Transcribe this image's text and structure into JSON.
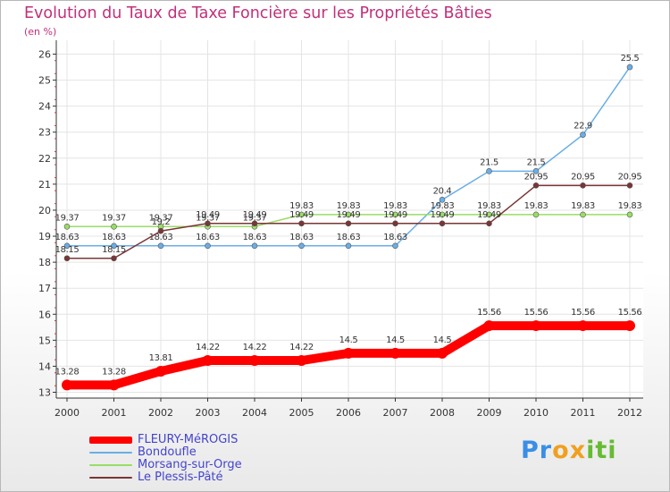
{
  "chart_data": {
    "type": "line",
    "title": "Evolution du Taux de Taxe Foncière sur les Propriétés Bâties",
    "ylabel": "(en %)",
    "xlabel": "",
    "x": [
      "2000",
      "2001",
      "2002",
      "2003",
      "2004",
      "2005",
      "2006",
      "2007",
      "2008",
      "2009",
      "2010",
      "2011",
      "2012"
    ],
    "ylim": [
      13,
      26
    ],
    "yticks": [
      "13",
      "14",
      "15",
      "16",
      "17",
      "18",
      "19",
      "20",
      "21",
      "22",
      "23",
      "24",
      "25",
      "26"
    ],
    "grid": true,
    "legend_position": "bottom-left",
    "series": [
      {
        "name": "FLEURY-MéROGIS",
        "color": "#ff0000",
        "values": [
          13.28,
          13.28,
          13.81,
          14.22,
          14.22,
          14.22,
          14.5,
          14.5,
          14.5,
          15.56,
          15.56,
          15.56,
          15.56
        ],
        "labels": [
          "13.28",
          "13.28",
          "13.81",
          "14.22",
          "14.22",
          "14.22",
          "14.5",
          "14.5",
          "14.5",
          "15.56",
          "15.56",
          "15.56",
          "15.56"
        ]
      },
      {
        "name": "Bondoufle",
        "color": "#6aaee6",
        "values": [
          18.63,
          18.63,
          18.63,
          18.63,
          18.63,
          18.63,
          18.63,
          18.63,
          20.4,
          21.5,
          21.5,
          22.9,
          25.5
        ],
        "labels": [
          "18.63",
          "18.63",
          "18.63",
          "18.63",
          "18.63",
          "18.63",
          "18.63",
          "18.63",
          "20.4",
          "21.5",
          "21.5",
          "22.9",
          "25.5"
        ]
      },
      {
        "name": "Morsang-sur-Orge",
        "color": "#99dd66",
        "values": [
          19.37,
          19.37,
          19.37,
          19.37,
          19.37,
          19.83,
          19.83,
          19.83,
          19.83,
          19.83,
          19.83,
          19.83,
          19.83
        ],
        "labels": [
          "19.37",
          "19.37",
          "19.37",
          "19.37",
          "19.37",
          "19.83",
          "19.83",
          "19.83",
          "19.83",
          "19.83",
          "19.83",
          "19.83",
          "19.83"
        ]
      },
      {
        "name": "Le Plessis-Pâté",
        "color": "#7a3535",
        "values": [
          18.15,
          18.15,
          19.2,
          19.49,
          19.49,
          19.49,
          19.49,
          19.49,
          19.49,
          19.49,
          20.95,
          20.95,
          20.95
        ],
        "labels": [
          "18.15",
          "18.15",
          "19.2",
          "19.49",
          "19.49",
          "19.49",
          "19.49",
          "19.49",
          "19.49",
          "19.49",
          "20.95",
          "20.95",
          "20.95"
        ]
      }
    ]
  },
  "brand": {
    "text": "Proxiti",
    "letters": [
      "P",
      "r",
      "o",
      "x",
      "i",
      "t",
      "i"
    ],
    "colors": [
      "#3a8ee6",
      "#3a8ee6",
      "#f0a020",
      "#f0a020",
      "#66bb33",
      "#66bb33",
      "#66bb33"
    ]
  }
}
